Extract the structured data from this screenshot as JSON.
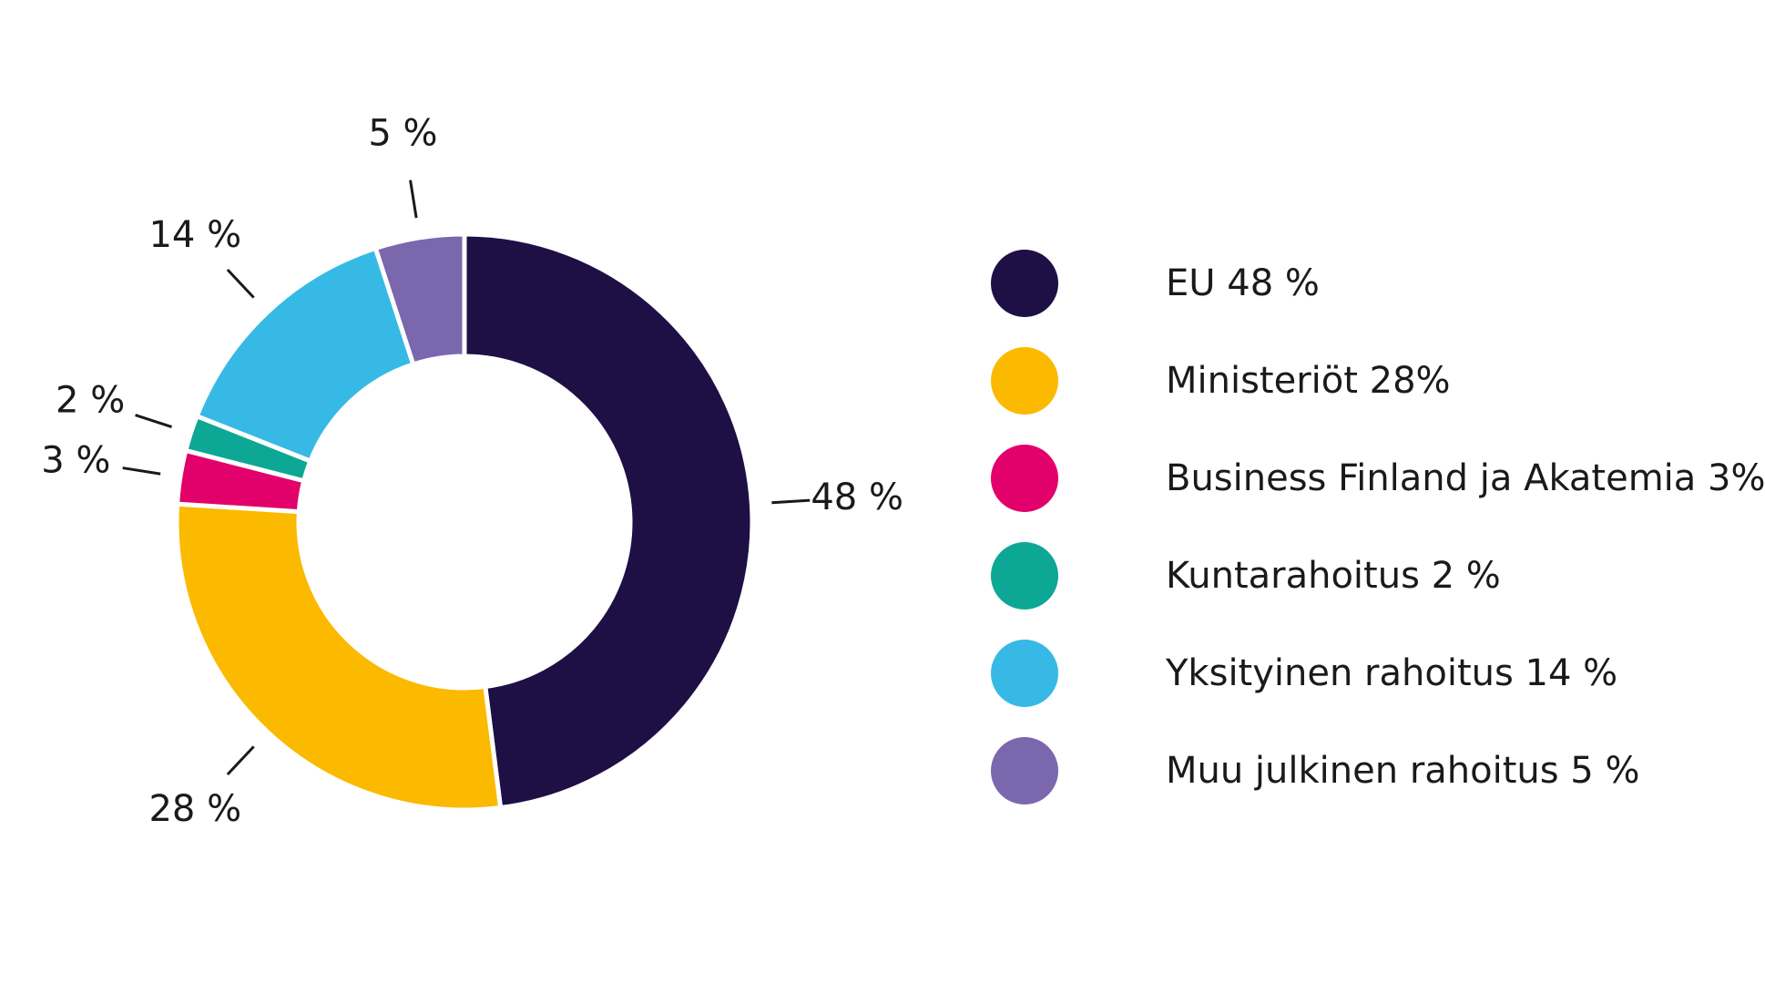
{
  "chart_data": {
    "type": "pie",
    "variant": "donut",
    "title": "",
    "slices": [
      {
        "name": "EU",
        "value": 48,
        "label": "48 %",
        "legend": "EU 48 %",
        "color": "#1e0f45"
      },
      {
        "name": "Ministeriöt",
        "value": 28,
        "label": "28 %",
        "legend": "Ministeriöt 28%",
        "color": "#fbb900"
      },
      {
        "name": "Business Finland ja Akatemia",
        "value": 3,
        "label": "3 %",
        "legend": "Business Finland ja Akatemia 3%",
        "color": "#e2006b"
      },
      {
        "name": "Kuntarahoitus",
        "value": 2,
        "label": "2 %",
        "legend": "Kuntarahoitus 2 %",
        "color": "#0ca895"
      },
      {
        "name": "Yksityinen rahoitus",
        "value": 14,
        "label": "14 %",
        "legend": "Yksityinen rahoitus 14 %",
        "color": "#37b9e5"
      },
      {
        "name": "Muu julkinen rahoitus",
        "value": 5,
        "label": "5 %",
        "legend": "Muu julkinen rahoitus 5 %",
        "color": "#7b67ad"
      }
    ],
    "legend_position": "right",
    "direction": "clockwise",
    "start": "top"
  }
}
